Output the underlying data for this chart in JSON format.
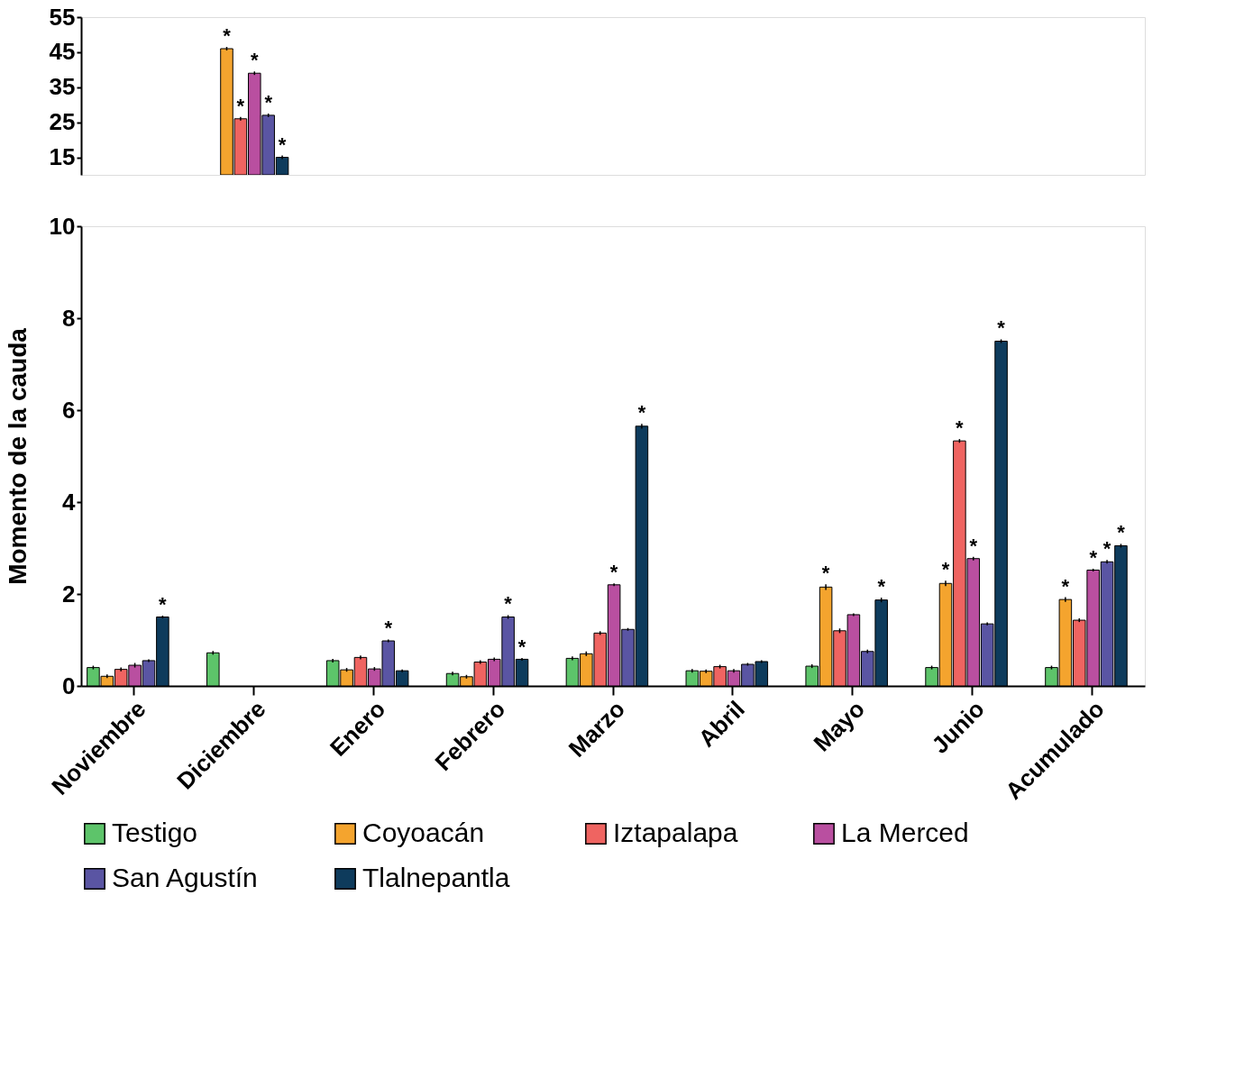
{
  "chart_data": [
    {
      "type": "bar",
      "categories": [
        null
      ],
      "ylim": [
        10,
        55
      ],
      "yticks": [
        15,
        25,
        35,
        45,
        55
      ],
      "series": [
        {
          "color": "#f4a42e",
          "values": [
            46
          ],
          "errors": [
            0.5
          ],
          "value_labels": [
            "*"
          ]
        },
        {
          "color": "#ef6461",
          "values": [
            26
          ],
          "errors": [
            0.5
          ],
          "value_labels": [
            "*"
          ]
        },
        {
          "color": "#b94fa0",
          "values": [
            39
          ],
          "errors": [
            0.5
          ],
          "value_labels": [
            "*"
          ]
        },
        {
          "color": "#5a55a3",
          "values": [
            27
          ],
          "errors": [
            0.5
          ],
          "value_labels": [
            "*"
          ]
        },
        {
          "color": "#0e3b5c",
          "values": [
            15
          ],
          "errors": [
            0.5
          ],
          "value_labels": [
            "*"
          ]
        }
      ]
    },
    {
      "type": "bar",
      "ylabel": "Momento de la cauda",
      "categories": [
        "Noviembre",
        "Diciembre",
        "Enero",
        "Febrero",
        "Marzo",
        "Abril",
        "Mayo",
        "Junio",
        "Acumulado"
      ],
      "ylim": [
        0,
        10
      ],
      "yticks": [
        0,
        2,
        4,
        6,
        8,
        10
      ],
      "legend": "bottom",
      "series": [
        {
          "name": "Testigo",
          "color": "#5dc46a",
          "values": [
            0.4,
            0.72,
            0.55,
            0.27,
            0.6,
            0.33,
            0.43,
            0.4,
            0.4
          ],
          "errors": [
            0.04,
            0.04,
            0.04,
            0.04,
            0.04,
            0.04,
            0.04,
            0.04,
            0.04
          ],
          "value_labels": [
            null,
            null,
            null,
            null,
            null,
            null,
            null,
            null,
            null
          ]
        },
        {
          "name": "Coyoacán",
          "color": "#f4a42e",
          "values": [
            0.21,
            null,
            0.35,
            0.2,
            0.7,
            0.32,
            2.15,
            2.23,
            1.88
          ],
          "errors": [
            0.04,
            null,
            0.04,
            0.04,
            0.05,
            0.04,
            0.06,
            0.06,
            0.05
          ],
          "value_labels": [
            null,
            null,
            null,
            null,
            null,
            null,
            "*",
            "*",
            "*"
          ]
        },
        {
          "name": "Iztapalapa",
          "color": "#ef6461",
          "values": [
            0.36,
            null,
            0.62,
            0.52,
            1.15,
            0.42,
            1.2,
            5.33,
            1.43
          ],
          "errors": [
            0.04,
            null,
            0.04,
            0.04,
            0.04,
            0.04,
            0.05,
            0.04,
            0.04
          ],
          "value_labels": [
            null,
            null,
            null,
            null,
            null,
            null,
            null,
            "*",
            null
          ]
        },
        {
          "name": "La Merced",
          "color": "#b94fa0",
          "values": [
            0.45,
            null,
            0.37,
            0.58,
            2.2,
            0.33,
            1.55,
            2.77,
            2.52
          ],
          "errors": [
            0.05,
            null,
            0.04,
            0.04,
            0.03,
            0.04,
            0.03,
            0.04,
            0.03
          ],
          "value_labels": [
            null,
            null,
            null,
            null,
            "*",
            null,
            null,
            "*",
            "*"
          ]
        },
        {
          "name": "San Agustín",
          "color": "#5a55a3",
          "values": [
            0.55,
            null,
            0.98,
            1.5,
            1.23,
            0.47,
            0.75,
            1.35,
            2.7
          ],
          "errors": [
            0.03,
            null,
            0.03,
            0.04,
            0.03,
            0.03,
            0.04,
            0.03,
            0.04
          ],
          "value_labels": [
            null,
            null,
            "*",
            "*",
            null,
            null,
            null,
            null,
            "*"
          ]
        },
        {
          "name": "Tlalnepantla",
          "color": "#0e3b5c",
          "values": [
            1.5,
            null,
            0.33,
            0.58,
            5.65,
            0.53,
            1.87,
            7.5,
            3.05
          ],
          "errors": [
            0.03,
            null,
            0.03,
            0.03,
            0.05,
            0.03,
            0.05,
            0.04,
            0.04
          ],
          "value_labels": [
            "*",
            null,
            null,
            "*",
            "*",
            null,
            "*",
            "*",
            "*"
          ]
        }
      ]
    }
  ]
}
